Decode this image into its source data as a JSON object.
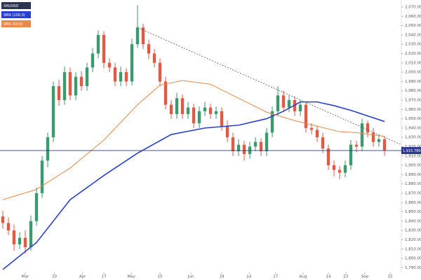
{
  "chart_data": {
    "type": "candlestick",
    "symbol": "XAUUSD",
    "open": [
      1845,
      1838,
      1830,
      1815,
      1822,
      1812,
      1840,
      1870,
      1905,
      1930,
      1985,
      1970,
      2000,
      1975,
      1995,
      1985,
      2005,
      2020,
      2040,
      2010,
      2005,
      1990,
      2000,
      1990,
      2030,
      2048,
      2030,
      2020,
      2010,
      1990,
      1965,
      1955,
      1972,
      1955,
      1962,
      1945,
      1958,
      1962,
      1955,
      1958,
      1942,
      1930,
      1915,
      1922,
      1912,
      1920,
      1925,
      1915,
      1935,
      1958,
      1975,
      1962,
      1970,
      1958,
      1965,
      1940,
      1938,
      1930,
      1918,
      1900,
      1895,
      1892,
      1900,
      1922,
      1920,
      1945,
      1935,
      1925,
      1928
    ],
    "high": [
      1851,
      1844,
      1836,
      1828,
      1830,
      1846,
      1876,
      1910,
      1935,
      1990,
      1992,
      2006,
      2005,
      2000,
      2001,
      2010,
      2026,
      2045,
      2044,
      2015,
      2010,
      2006,
      2004,
      2036,
      2072,
      2052,
      2035,
      2025,
      2015,
      1995,
      1970,
      1978,
      1976,
      1968,
      1966,
      1963,
      1968,
      1966,
      1963,
      1962,
      1948,
      1935,
      1928,
      1926,
      1925,
      1930,
      1929,
      1940,
      1963,
      1985,
      1980,
      1975,
      1974,
      1970,
      1968,
      1945,
      1942,
      1935,
      1922,
      1905,
      1899,
      1905,
      1927,
      1926,
      1950,
      1948,
      1940,
      1933,
      1931
    ],
    "low": [
      1832,
      1825,
      1808,
      1810,
      1805,
      1808,
      1835,
      1865,
      1898,
      1925,
      1964,
      1965,
      1970,
      1970,
      1980,
      1980,
      2000,
      2015,
      2004,
      2000,
      1985,
      1985,
      1985,
      1986,
      2026,
      2025,
      2014,
      2005,
      1985,
      1960,
      1950,
      1950,
      1950,
      1950,
      1940,
      1940,
      1953,
      1950,
      1950,
      1937,
      1925,
      1910,
      1910,
      1905,
      1907,
      1915,
      1910,
      1910,
      1930,
      1953,
      1957,
      1957,
      1953,
      1953,
      1935,
      1933,
      1925,
      1913,
      1895,
      1888,
      1885,
      1887,
      1895,
      1914,
      1915,
      1930,
      1920,
      1920,
      1910
    ],
    "close": [
      1838,
      1830,
      1815,
      1822,
      1812,
      1840,
      1870,
      1905,
      1930,
      1985,
      1970,
      2000,
      1975,
      1995,
      1985,
      2005,
      2020,
      2040,
      2010,
      2005,
      1990,
      2000,
      1990,
      2030,
      2048,
      2030,
      2020,
      2010,
      1990,
      1965,
      1955,
      1972,
      1955,
      1962,
      1945,
      1958,
      1962,
      1955,
      1958,
      1942,
      1930,
      1915,
      1922,
      1912,
      1920,
      1925,
      1915,
      1935,
      1958,
      1975,
      1962,
      1970,
      1958,
      1965,
      1940,
      1938,
      1930,
      1918,
      1900,
      1895,
      1892,
      1900,
      1922,
      1920,
      1945,
      1935,
      1925,
      1928,
      1916
    ],
    "up_color": "#3a9a6e",
    "down_color": "#dd5a45",
    "overlays": [
      {
        "name": "SMA (100,0)",
        "color": "#2a3fd0",
        "x": [
          0,
          6,
          12,
          18,
          24,
          30,
          36,
          42,
          47,
          50,
          53,
          56,
          59,
          62,
          65,
          68
        ],
        "values": [
          1788,
          1817,
          1863,
          1889,
          1913,
          1933,
          1940,
          1943,
          1950,
          1958,
          1968,
          1968,
          1964,
          1959,
          1953,
          1947
        ]
      },
      {
        "name": "SMA (50,0)",
        "color": "#e8894a",
        "x": [
          0,
          6,
          12,
          18,
          24,
          28,
          32,
          37,
          42,
          47,
          52,
          56,
          60,
          63,
          68
        ],
        "values": [
          1863,
          1874,
          1897,
          1927,
          1965,
          1986,
          1991,
          1987,
          1972,
          1957,
          1948,
          1942,
          1936,
          1935,
          1931
        ]
      }
    ],
    "trendline": {
      "x": [
        24,
        71
      ],
      "values": [
        2048,
        1922
      ]
    },
    "last_price": {
      "value": 1915.78,
      "label": "1,915.7800"
    },
    "xlim": [
      -0.5,
      71
    ],
    "ylim": [
      1785,
      2076
    ],
    "xticks": [
      {
        "value": 4,
        "label": "Mar"
      },
      {
        "value": 9.2,
        "label": "20"
      },
      {
        "value": 14.2,
        "label": "Apr"
      },
      {
        "value": 18,
        "label": "17"
      },
      {
        "value": 22.9,
        "label": "May"
      },
      {
        "value": 28,
        "label": "15"
      },
      {
        "value": 33.5,
        "label": "Jun"
      },
      {
        "value": 39,
        "label": "19"
      },
      {
        "value": 43.9,
        "label": "Jul"
      },
      {
        "value": 48.6,
        "label": "17"
      },
      {
        "value": 53.5,
        "label": "Aug"
      },
      {
        "value": 58,
        "label": "14"
      },
      {
        "value": 61.1,
        "label": "23"
      },
      {
        "value": 64.5,
        "label": "Sep"
      },
      {
        "value": 69,
        "label": "15"
      }
    ],
    "yticks": [
      {
        "value": 1790,
        "label": "1,790.0000"
      },
      {
        "value": 1800,
        "label": "1,800.0000"
      },
      {
        "value": 1810,
        "label": "1,810.0000"
      },
      {
        "value": 1820,
        "label": "1,820.0000"
      },
      {
        "value": 1830,
        "label": "1,830.0000"
      },
      {
        "value": 1840,
        "label": "1,840.0000"
      },
      {
        "value": 1850,
        "label": "1,850.0000"
      },
      {
        "value": 1860,
        "label": "1,860.0000"
      },
      {
        "value": 1870,
        "label": "1,870.0000"
      },
      {
        "value": 1880,
        "label": "1,880.0000"
      },
      {
        "value": 1890,
        "label": "1,890.0000"
      },
      {
        "value": 1900,
        "label": "1,900.0000"
      },
      {
        "value": 1910,
        "label": "1,910.0000"
      },
      {
        "value": 1920,
        "label": "1,920.0000"
      },
      {
        "value": 1930,
        "label": "1,930.0000"
      },
      {
        "value": 1940,
        "label": "1,940.0000"
      },
      {
        "value": 1950,
        "label": "1,950.0000"
      },
      {
        "value": 1960,
        "label": "1,960.0000"
      },
      {
        "value": 1970,
        "label": "1,970.0000"
      },
      {
        "value": 1980,
        "label": "1,980.0000"
      },
      {
        "value": 1990,
        "label": "1,990.0000"
      },
      {
        "value": 2000,
        "label": "2,000.0000"
      },
      {
        "value": 2010,
        "label": "2,010.0000"
      },
      {
        "value": 2020,
        "label": "2,020.0000"
      },
      {
        "value": 2030,
        "label": "2,030.0000"
      },
      {
        "value": 2040,
        "label": "2,040.0000"
      },
      {
        "value": 2050,
        "label": "2,050.0000"
      },
      {
        "value": 2060,
        "label": "2,060.0000"
      },
      {
        "value": 2070,
        "label": "2,070.0000"
      }
    ]
  }
}
